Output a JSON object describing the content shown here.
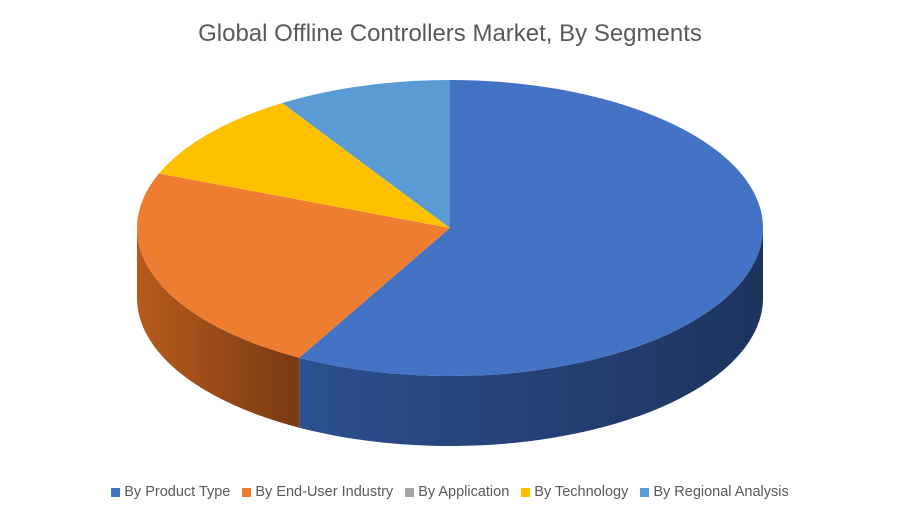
{
  "chart_data": {
    "type": "pie",
    "title": "Global Offline Controllers Market, By Segments",
    "categories": [
      "By Product Type",
      "By End-User Industry",
      "By Application",
      "By Technology",
      "By Regional Analysis"
    ],
    "values": [
      58,
      23,
      0,
      10,
      9
    ],
    "colors": [
      "#4472C4",
      "#ED7D31",
      "#A5A5A5",
      "#FFC000",
      "#5B9BD5"
    ],
    "side_colors": [
      "#2C4F8F",
      "#B85A1C",
      "#7F7F7F",
      "#C89600",
      "#3F75A8"
    ],
    "style": "3d",
    "legend_position": "bottom"
  }
}
